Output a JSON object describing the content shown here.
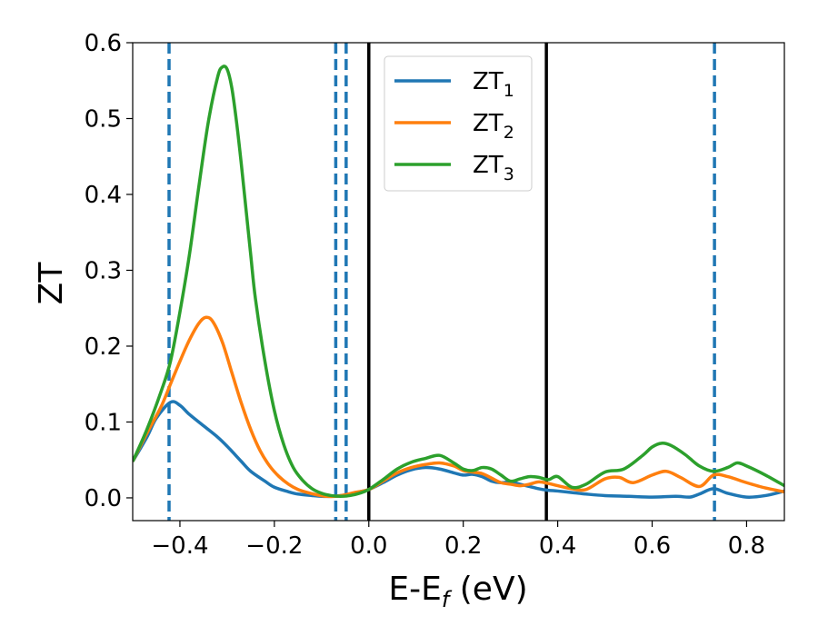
{
  "chart_data": {
    "type": "line",
    "title": "",
    "xlabel": {
      "main": "E-E",
      "sub": "f",
      "suffix": " (eV)"
    },
    "ylabel": "ZT",
    "xlim": [
      -0.5,
      0.88
    ],
    "ylim": [
      -0.03,
      0.6
    ],
    "xticks": [
      -0.4,
      -0.2,
      0.0,
      0.2,
      0.4,
      0.6,
      0.8
    ],
    "xtick_labels": [
      "−0.4",
      "−0.2",
      "0.0",
      "0.2",
      "0.4",
      "0.6",
      "0.8"
    ],
    "yticks": [
      0.0,
      0.1,
      0.2,
      0.3,
      0.4,
      0.5,
      0.6
    ],
    "ytick_labels": [
      "0.0",
      "0.1",
      "0.2",
      "0.3",
      "0.4",
      "0.5",
      "0.6"
    ],
    "grid": false,
    "legend_position": "top-center",
    "vertical_lines_solid": [
      0.0,
      0.376
    ],
    "vertical_lines_dashed": [
      -0.423,
      -0.07,
      -0.048,
      0.732
    ],
    "colors": {
      "dashed": "#1f77b4",
      "solid": "#000000"
    },
    "series": [
      {
        "name": "ZT",
        "sub": "1",
        "color": "#1f77b4",
        "x": [
          -0.5,
          -0.47,
          -0.45,
          -0.42,
          -0.4,
          -0.38,
          -0.35,
          -0.32,
          -0.3,
          -0.27,
          -0.25,
          -0.22,
          -0.2,
          -0.17,
          -0.15,
          -0.12,
          -0.1,
          -0.08,
          -0.06,
          -0.04,
          -0.02,
          0.0,
          0.03,
          0.06,
          0.09,
          0.12,
          0.15,
          0.18,
          0.2,
          0.22,
          0.24,
          0.26,
          0.28,
          0.3,
          0.32,
          0.34,
          0.36,
          0.38,
          0.4,
          0.43,
          0.46,
          0.5,
          0.55,
          0.6,
          0.65,
          0.68,
          0.7,
          0.73,
          0.76,
          0.8,
          0.84,
          0.88
        ],
        "y": [
          0.048,
          0.08,
          0.105,
          0.126,
          0.122,
          0.11,
          0.095,
          0.08,
          0.068,
          0.048,
          0.035,
          0.022,
          0.014,
          0.008,
          0.005,
          0.003,
          0.002,
          0.002,
          0.003,
          0.005,
          0.008,
          0.011,
          0.02,
          0.03,
          0.037,
          0.04,
          0.038,
          0.033,
          0.03,
          0.031,
          0.028,
          0.022,
          0.02,
          0.021,
          0.018,
          0.015,
          0.012,
          0.01,
          0.009,
          0.007,
          0.005,
          0.003,
          0.002,
          0.001,
          0.002,
          0.001,
          0.005,
          0.012,
          0.006,
          0.001,
          0.003,
          0.009
        ]
      },
      {
        "name": "ZT",
        "sub": "2",
        "color": "#ff7f0e",
        "x": [
          -0.5,
          -0.47,
          -0.44,
          -0.42,
          -0.4,
          -0.38,
          -0.36,
          -0.345,
          -0.33,
          -0.31,
          -0.29,
          -0.27,
          -0.25,
          -0.23,
          -0.21,
          -0.19,
          -0.17,
          -0.15,
          -0.13,
          -0.11,
          -0.09,
          -0.07,
          -0.05,
          -0.03,
          0.0,
          0.03,
          0.06,
          0.09,
          0.12,
          0.15,
          0.18,
          0.2,
          0.22,
          0.24,
          0.26,
          0.28,
          0.3,
          0.32,
          0.34,
          0.36,
          0.38,
          0.4,
          0.43,
          0.46,
          0.5,
          0.53,
          0.56,
          0.6,
          0.63,
          0.66,
          0.7,
          0.73,
          0.76,
          0.8,
          0.84,
          0.88
        ],
        "y": [
          0.048,
          0.085,
          0.12,
          0.15,
          0.18,
          0.208,
          0.23,
          0.238,
          0.232,
          0.205,
          0.165,
          0.125,
          0.09,
          0.062,
          0.042,
          0.028,
          0.018,
          0.011,
          0.007,
          0.004,
          0.002,
          0.002,
          0.004,
          0.007,
          0.011,
          0.022,
          0.033,
          0.04,
          0.044,
          0.046,
          0.042,
          0.036,
          0.034,
          0.032,
          0.026,
          0.02,
          0.018,
          0.016,
          0.018,
          0.021,
          0.019,
          0.016,
          0.012,
          0.011,
          0.025,
          0.027,
          0.02,
          0.03,
          0.035,
          0.027,
          0.015,
          0.03,
          0.028,
          0.02,
          0.013,
          0.008
        ]
      },
      {
        "name": "ZT",
        "sub": "3",
        "color": "#2ca02c",
        "x": [
          -0.5,
          -0.47,
          -0.44,
          -0.42,
          -0.4,
          -0.38,
          -0.36,
          -0.34,
          -0.32,
          -0.31,
          -0.3,
          -0.29,
          -0.28,
          -0.27,
          -0.26,
          -0.25,
          -0.24,
          -0.22,
          -0.2,
          -0.18,
          -0.16,
          -0.14,
          -0.12,
          -0.1,
          -0.08,
          -0.06,
          -0.04,
          -0.02,
          0.0,
          0.03,
          0.06,
          0.09,
          0.12,
          0.15,
          0.18,
          0.2,
          0.22,
          0.24,
          0.26,
          0.28,
          0.3,
          0.32,
          0.34,
          0.36,
          0.38,
          0.4,
          0.43,
          0.46,
          0.5,
          0.54,
          0.58,
          0.6,
          0.62,
          0.64,
          0.67,
          0.7,
          0.73,
          0.76,
          0.78,
          0.8,
          0.84,
          0.88
        ],
        "y": [
          0.048,
          0.09,
          0.14,
          0.18,
          0.245,
          0.32,
          0.41,
          0.495,
          0.555,
          0.568,
          0.565,
          0.54,
          0.495,
          0.44,
          0.38,
          0.32,
          0.262,
          0.18,
          0.115,
          0.07,
          0.04,
          0.023,
          0.012,
          0.006,
          0.003,
          0.002,
          0.003,
          0.006,
          0.011,
          0.024,
          0.038,
          0.047,
          0.052,
          0.056,
          0.046,
          0.038,
          0.036,
          0.04,
          0.038,
          0.03,
          0.022,
          0.025,
          0.028,
          0.027,
          0.024,
          0.028,
          0.014,
          0.018,
          0.034,
          0.038,
          0.056,
          0.067,
          0.072,
          0.069,
          0.057,
          0.042,
          0.035,
          0.04,
          0.046,
          0.042,
          0.03,
          0.016
        ]
      }
    ]
  }
}
